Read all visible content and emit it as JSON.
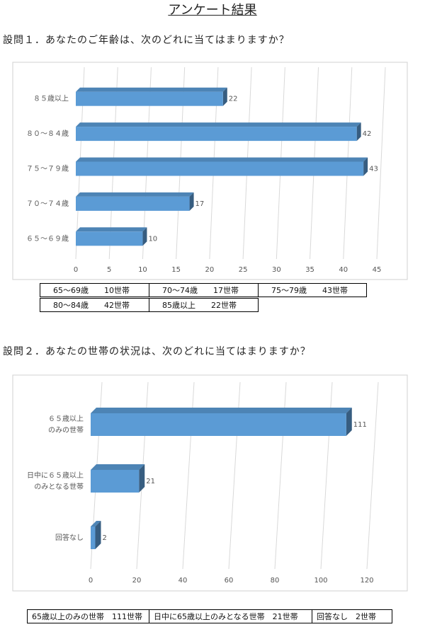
{
  "title": "アンケート結果",
  "questions": [
    {
      "text": "設問１．あなたのご年齢は、次のどれに当てはまりますか？",
      "chart_data": {
        "type": "bar",
        "orientation": "horizontal",
        "categories": [
          [
            "８５歳以上"
          ],
          [
            "８０～８４歳"
          ],
          [
            "７５～７９歳"
          ],
          [
            "７０～７４歳"
          ],
          [
            "６５～６９歳"
          ]
        ],
        "values": [
          22,
          42,
          43,
          17,
          10
        ],
        "color": "#5b9bd5",
        "xlim": [
          0,
          45
        ],
        "xticks": [
          0,
          5,
          10,
          15,
          20,
          25,
          30,
          35,
          40,
          45
        ],
        "grid": true
      },
      "table": {
        "rows": [
          [
            "65～69歳　　10世帯",
            "70～74歳　　17世帯",
            "75～79歳　　43世帯"
          ],
          [
            "80～84歳　　42世帯",
            "85歳以上　　22世帯"
          ]
        ]
      }
    },
    {
      "text": "設問２．あなたの世帯の状況は、次のどれに当てはまりますか？",
      "chart_data": {
        "type": "bar",
        "orientation": "horizontal",
        "categories": [
          [
            "６５歳以上",
            "のみの世帯"
          ],
          [
            "日中に６５歳以上",
            "のみとなる世帯"
          ],
          [
            "回答なし"
          ]
        ],
        "values": [
          111,
          21,
          2
        ],
        "color": "#5b9bd5",
        "xlim": [
          0,
          120
        ],
        "xticks": [
          0,
          20,
          40,
          60,
          80,
          100,
          120
        ],
        "grid": true
      },
      "table": {
        "rows": [
          [
            "65歳以上のみの世帯　111世帯",
            "日中に65歳以上のみとなる世帯　21世帯",
            "回答なし　2世帯"
          ]
        ]
      }
    }
  ]
}
